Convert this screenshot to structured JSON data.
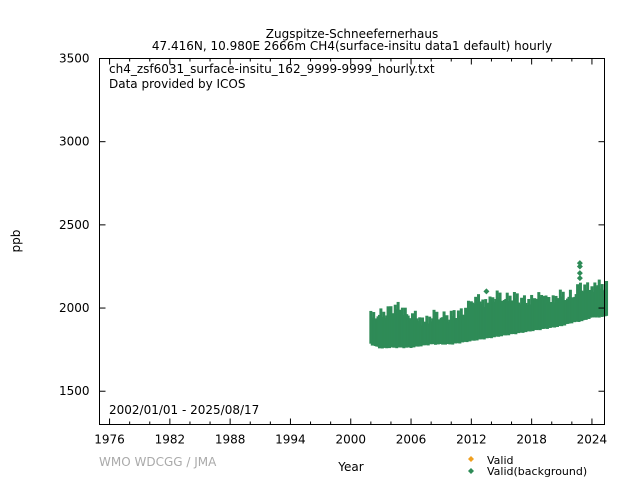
{
  "chart_data": {
    "type": "scatter",
    "title_line1": "Zugspitze-Schneefernerhaus",
    "title_line2": "47.416N, 10.980E 2666m    CH4(surface-insitu data1 default) hourly",
    "file_label": "ch4_zsf6031_surface-insitu_162_9999-9999_hourly.txt",
    "provider_label": "Data provided by ICOS",
    "date_range_label": "2002/01/01 - 2025/08/17",
    "credit": "WMO WDCGG / JMA",
    "xlabel": "Year",
    "ylabel": "ppb",
    "xlim": [
      1975,
      2025.25
    ],
    "ylim": [
      1300,
      3500
    ],
    "xticks": [
      "1976",
      "1982",
      "1988",
      "1994",
      "2000",
      "2006",
      "2012",
      "2018",
      "2024"
    ],
    "yticks": [
      "1500",
      "2000",
      "2500",
      "3000",
      "3500"
    ],
    "legend": [
      {
        "label": "Valid",
        "color": "#f0a020"
      },
      {
        "label": "Valid(background)",
        "color": "#2e8b57"
      }
    ],
    "legend_position": "bottom-right",
    "series": [
      {
        "name": "Valid(background)",
        "color": "#2e8b57",
        "envelope": [
          {
            "x": 2002.0,
            "min": 1790,
            "max": 1950
          },
          {
            "x": 2003.0,
            "min": 1765,
            "max": 1985
          },
          {
            "x": 2004.0,
            "min": 1770,
            "max": 1990
          },
          {
            "x": 2005.0,
            "min": 1770,
            "max": 2020
          },
          {
            "x": 2006.0,
            "min": 1770,
            "max": 1960
          },
          {
            "x": 2007.0,
            "min": 1780,
            "max": 1940
          },
          {
            "x": 2008.0,
            "min": 1790,
            "max": 1950
          },
          {
            "x": 2009.0,
            "min": 1790,
            "max": 1970
          },
          {
            "x": 2010.0,
            "min": 1790,
            "max": 1960
          },
          {
            "x": 2011.0,
            "min": 1800,
            "max": 1975
          },
          {
            "x": 2012.0,
            "min": 1810,
            "max": 2060
          },
          {
            "x": 2013.0,
            "min": 1820,
            "max": 2050
          },
          {
            "x": 2014.0,
            "min": 1830,
            "max": 2060
          },
          {
            "x": 2015.0,
            "min": 1840,
            "max": 2080
          },
          {
            "x": 2016.0,
            "min": 1850,
            "max": 2080
          },
          {
            "x": 2017.0,
            "min": 1860,
            "max": 2050
          },
          {
            "x": 2018.0,
            "min": 1870,
            "max": 2070
          },
          {
            "x": 2019.0,
            "min": 1880,
            "max": 2090
          },
          {
            "x": 2020.0,
            "min": 1890,
            "max": 2060
          },
          {
            "x": 2021.0,
            "min": 1900,
            "max": 2080
          },
          {
            "x": 2022.0,
            "min": 1920,
            "max": 2100
          },
          {
            "x": 2023.0,
            "min": 1930,
            "max": 2130
          },
          {
            "x": 2024.0,
            "min": 1950,
            "max": 2140
          },
          {
            "x": 2025.6,
            "min": 1960,
            "max": 2150
          }
        ],
        "outliers": [
          {
            "x": 2013.5,
            "y": 2100
          },
          {
            "x": 2022.8,
            "y": 2270
          },
          {
            "x": 2022.8,
            "y": 2250
          },
          {
            "x": 2022.8,
            "y": 2210
          },
          {
            "x": 2022.8,
            "y": 2180
          }
        ]
      }
    ]
  }
}
